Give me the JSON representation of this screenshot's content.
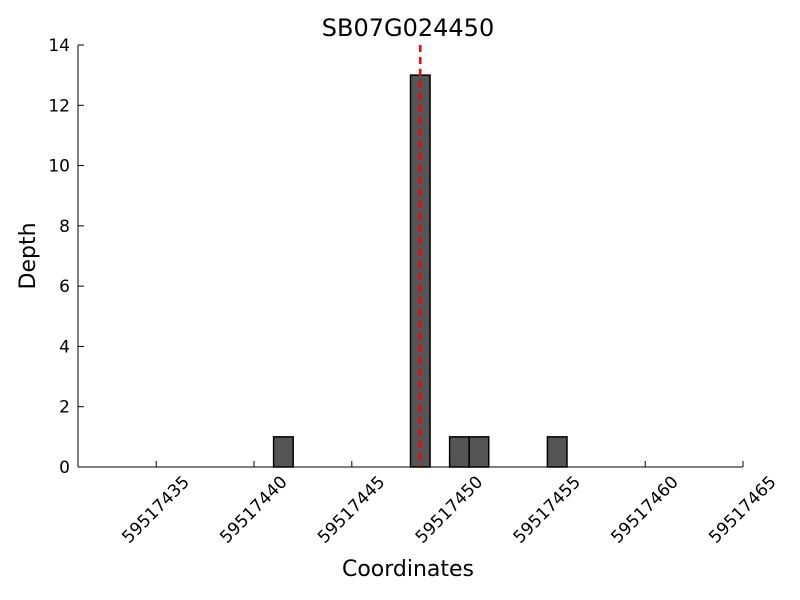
{
  "chart_data": {
    "type": "bar",
    "title": "SB07G024450",
    "x_label": "Coordinates",
    "y_label": "Depth",
    "x": [
      59517441,
      59517448,
      59517450,
      59517451,
      59517455
    ],
    "values": [
      1,
      13,
      1,
      1,
      1
    ],
    "color": "#555555",
    "edge_color": "#000000",
    "xlim": [
      59517431,
      59517465
    ],
    "xticks": [
      59517435,
      59517440,
      59517445,
      59517450,
      59517455,
      59517460,
      59517465
    ],
    "ylim": [
      0,
      14
    ],
    "yticks": [
      0,
      2,
      4,
      6,
      8,
      10,
      12,
      14
    ],
    "grid": false,
    "vline": {
      "x": 59517448.5,
      "color": "#ff0000"
    }
  }
}
